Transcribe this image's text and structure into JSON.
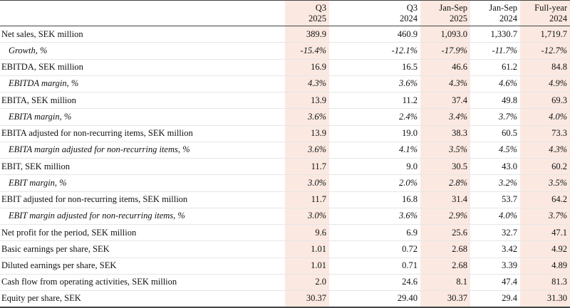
{
  "table": {
    "columns": [
      {
        "line1": "Q3",
        "line2": "2025",
        "shaded": true
      },
      {
        "line1": "Q3",
        "line2": "2024",
        "shaded": false
      },
      {
        "line1": "Jan-Sep",
        "line2": "2025",
        "shaded": true
      },
      {
        "line1": "Jan-Sep",
        "line2": "2024",
        "shaded": false
      },
      {
        "line1": "Full-year",
        "line2": "2024",
        "shaded": true
      }
    ],
    "rows": [
      {
        "label": "Net sales, SEK million",
        "italic": false,
        "values": [
          "389.9",
          "460.9",
          "1,093.0",
          "1,330.7",
          "1,719.7"
        ]
      },
      {
        "label": "Growth, %",
        "italic": true,
        "values": [
          "-15.4%",
          "-12.1%",
          "-17.9%",
          "-11.7%",
          "-12.7%"
        ]
      },
      {
        "label": "EBITDA, SEK million",
        "italic": false,
        "values": [
          "16.9",
          "16.5",
          "46.6",
          "61.2",
          "84.8"
        ]
      },
      {
        "label": "EBITDA margin, %",
        "italic": true,
        "values": [
          "4.3%",
          "3.6%",
          "4.3%",
          "4.6%",
          "4.9%"
        ]
      },
      {
        "label": "EBITA, SEK million",
        "italic": false,
        "values": [
          "13.9",
          "11.2",
          "37.4",
          "49.8",
          "69.3"
        ]
      },
      {
        "label": "EBITA margin, %",
        "italic": true,
        "values": [
          "3.6%",
          "2.4%",
          "3.4%",
          "3.7%",
          "4.0%"
        ]
      },
      {
        "label": "EBITA adjusted for non-recurring items, SEK million",
        "italic": false,
        "values": [
          "13.9",
          "19.0",
          "38.3",
          "60.5",
          "73.3"
        ]
      },
      {
        "label": "EBITA margin adjusted for non-recurring items, %",
        "italic": true,
        "values": [
          "3.6%",
          "4.1%",
          "3.5%",
          "4.5%",
          "4.3%"
        ]
      },
      {
        "label": "EBIT, SEK million",
        "italic": false,
        "values": [
          "11.7",
          "9.0",
          "30.5",
          "43.0",
          "60.2"
        ]
      },
      {
        "label": "EBIT margin, %",
        "italic": true,
        "values": [
          "3.0%",
          "2.0%",
          "2.8%",
          "3.2%",
          "3.5%"
        ]
      },
      {
        "label": "EBIT adjusted for non-recurring items, SEK million",
        "italic": false,
        "values": [
          "11.7",
          "16.8",
          "31.4",
          "53.7",
          "64.2"
        ]
      },
      {
        "label": "EBIT margin adjusted for non-recurring items, %",
        "italic": true,
        "values": [
          "3.0%",
          "3.6%",
          "2.9%",
          "4.0%",
          "3.7%"
        ]
      },
      {
        "label": "Net profit for the period, SEK million",
        "italic": false,
        "values": [
          "9.6",
          "6.9",
          "25.6",
          "32.7",
          "47.1"
        ]
      },
      {
        "label": "Basic earnings per share, SEK",
        "italic": false,
        "values": [
          "1.01",
          "0.72",
          "2.68",
          "3.42",
          "4.92"
        ]
      },
      {
        "label": "Diluted earnings per share, SEK",
        "italic": false,
        "values": [
          "1.01",
          "0.71",
          "2.68",
          "3.39",
          "4.89"
        ]
      },
      {
        "label": "Cash flow from operating activities, SEK million",
        "italic": false,
        "values": [
          "2.0",
          "24.6",
          "8.1",
          "47.4",
          "81.3"
        ]
      },
      {
        "label": "Equity per share, SEK",
        "italic": false,
        "values": [
          "30.37",
          "29.40",
          "30.37",
          "29.4",
          "31.30"
        ]
      }
    ]
  }
}
